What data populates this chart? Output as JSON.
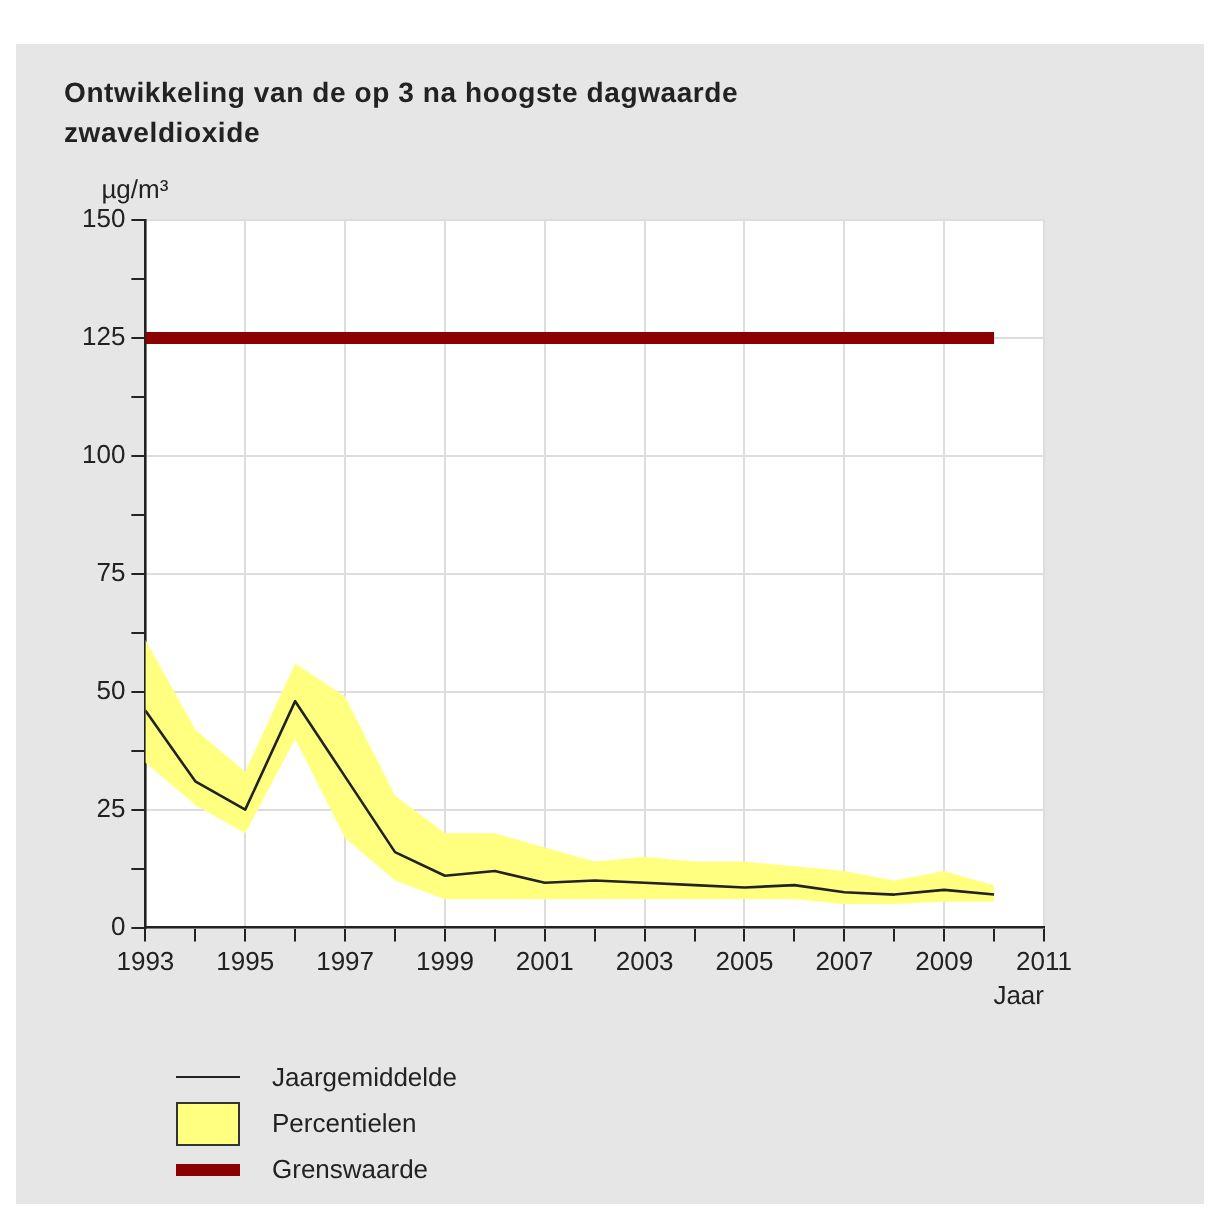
{
  "chart_data": {
    "type": "line",
    "title": "Ontwikkeling van de op 3 na hoogste dagwaarde zwaveldioxide",
    "ylabel": "µg/m³",
    "xlabel": "Jaar",
    "x": [
      1993,
      1994,
      1995,
      1996,
      1997,
      1998,
      1999,
      2000,
      2001,
      2002,
      2003,
      2004,
      2005,
      2006,
      2007,
      2008,
      2009,
      2010
    ],
    "series": [
      {
        "name": "Jaargemiddelde",
        "color": "#222222",
        "values": [
          46,
          31,
          25,
          48,
          32,
          16,
          11,
          12,
          9.5,
          10,
          9.5,
          9,
          8.5,
          9,
          7.5,
          7,
          8,
          7
        ]
      },
      {
        "name": "Percentielen",
        "type": "area",
        "color": "#ffff80",
        "values": [
          null,
          null,
          null,
          null,
          null,
          null,
          null,
          null,
          null,
          null,
          null,
          null,
          null,
          null,
          null,
          null,
          null,
          null
        ],
        "lower": [
          35,
          26,
          20,
          40,
          19,
          10,
          6,
          6,
          6,
          6,
          6,
          6,
          6,
          6,
          5,
          5,
          5.5,
          5.5
        ],
        "upper": [
          61,
          42,
          33,
          56,
          49,
          28,
          20,
          20,
          17,
          14,
          15,
          14,
          14,
          13,
          12,
          10,
          12,
          9
        ]
      },
      {
        "name": "Grenswaarde",
        "type": "line",
        "color": "#8b0000",
        "x": [
          1993,
          2010
        ],
        "values": [
          125,
          125
        ]
      }
    ],
    "xlim": [
      1993,
      2011
    ],
    "xticks": [
      1993,
      {
        "value": 1994,
        "label": null
      },
      1995,
      {
        "value": 1996,
        "label": null
      },
      1997,
      {
        "value": 1998,
        "label": null
      },
      1999,
      {
        "value": 2000,
        "label": null
      },
      2001,
      {
        "value": 2002,
        "label": null
      },
      2003,
      {
        "value": 2004,
        "label": null
      },
      2005,
      {
        "value": 2006,
        "label": null
      },
      2007,
      {
        "value": 2008,
        "label": null
      },
      2009,
      {
        "value": 2010,
        "label": null
      },
      2011
    ],
    "ylim": [
      0,
      150
    ],
    "yticks": [
      0,
      {
        "value": 12.5,
        "label": null
      },
      25,
      {
        "value": 37.5,
        "label": null
      },
      50,
      {
        "value": 62.5,
        "label": null
      },
      75,
      {
        "value": 87.5,
        "label": null
      },
      100,
      {
        "value": 112.5,
        "label": null
      },
      125,
      {
        "value": 137.5,
        "label": null
      },
      150
    ],
    "grid": true,
    "legend": "bottom left",
    "marker": "none",
    "line_style": "solid"
  }
}
